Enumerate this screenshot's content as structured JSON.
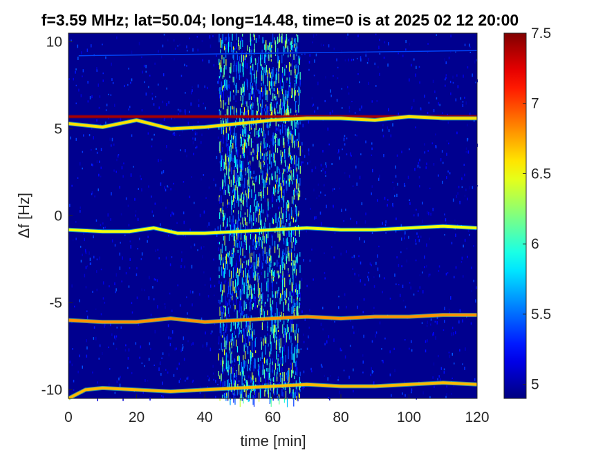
{
  "chart_data": {
    "type": "heatmap",
    "title": "f=3.59 MHz;  lat=50.04; long=14.48, time=0 is at 2025 02 12 20:00",
    "xlabel": "time [min]",
    "ylabel": "Δf [Hz]",
    "xlim": [
      0,
      120
    ],
    "ylim": [
      -10.5,
      10.5
    ],
    "xticks": [
      0,
      20,
      40,
      60,
      80,
      100,
      120
    ],
    "xtick_labels": [
      "0",
      "20",
      "40",
      "60",
      "80",
      "100",
      "120"
    ],
    "yticks": [
      10,
      5,
      0,
      -5,
      -10
    ],
    "ytick_labels": [
      "10",
      "5",
      "0",
      "-5",
      "-10"
    ],
    "colormap": "jet",
    "clim": [
      4.9,
      7.5
    ],
    "colorbar_ticks": [
      7.5,
      7,
      6.5,
      6,
      5.5,
      5
    ],
    "colorbar_tick_labels": [
      "7.5",
      "7",
      "6.5",
      "6",
      "5.5",
      "5"
    ],
    "background_color": "#00008f",
    "traces": [
      {
        "kind": "steady-carrier",
        "level": 7.4,
        "x": [
          0,
          120
        ],
        "y": [
          5.7,
          5.7
        ]
      },
      {
        "kind": "doppler-trace",
        "level": 6.6,
        "x": [
          0,
          10,
          20,
          30,
          40,
          50,
          60,
          70,
          80,
          90,
          100,
          110,
          120
        ],
        "y": [
          5.3,
          5.1,
          5.5,
          5.0,
          5.1,
          5.3,
          5.5,
          5.6,
          5.6,
          5.5,
          5.7,
          5.6,
          5.6
        ]
      },
      {
        "kind": "doppler-trace",
        "level": 6.5,
        "x": [
          0,
          10,
          18,
          25,
          32,
          40,
          50,
          60,
          70,
          80,
          90,
          100,
          110,
          120
        ],
        "y": [
          -0.8,
          -0.9,
          -0.9,
          -0.7,
          -1.0,
          -1.0,
          -0.9,
          -0.8,
          -0.7,
          -0.8,
          -0.8,
          -0.7,
          -0.6,
          -0.7
        ]
      },
      {
        "kind": "doppler-trace",
        "level": 6.8,
        "x": [
          0,
          10,
          20,
          30,
          40,
          50,
          60,
          70,
          80,
          90,
          100,
          110,
          120
        ],
        "y": [
          -6.0,
          -6.1,
          -6.1,
          -5.9,
          -6.1,
          -6.0,
          -5.9,
          -5.8,
          -5.9,
          -5.8,
          -5.8,
          -5.7,
          -5.7
        ]
      },
      {
        "kind": "doppler-trace",
        "level": 6.7,
        "x": [
          0,
          5,
          10,
          20,
          30,
          40,
          50,
          60,
          70,
          80,
          90,
          100,
          110,
          120
        ],
        "y": [
          -10.5,
          -10.0,
          -9.9,
          -10.0,
          -10.1,
          -10.0,
          -9.9,
          -9.8,
          -9.7,
          -9.8,
          -9.8,
          -9.7,
          -9.6,
          -9.7
        ]
      },
      {
        "kind": "faint-line",
        "level": 5.4,
        "x": [
          3,
          120
        ],
        "y": [
          9.2,
          9.5
        ]
      }
    ],
    "noise_band": {
      "x": [
        44,
        68
      ],
      "level": 5.9
    }
  }
}
